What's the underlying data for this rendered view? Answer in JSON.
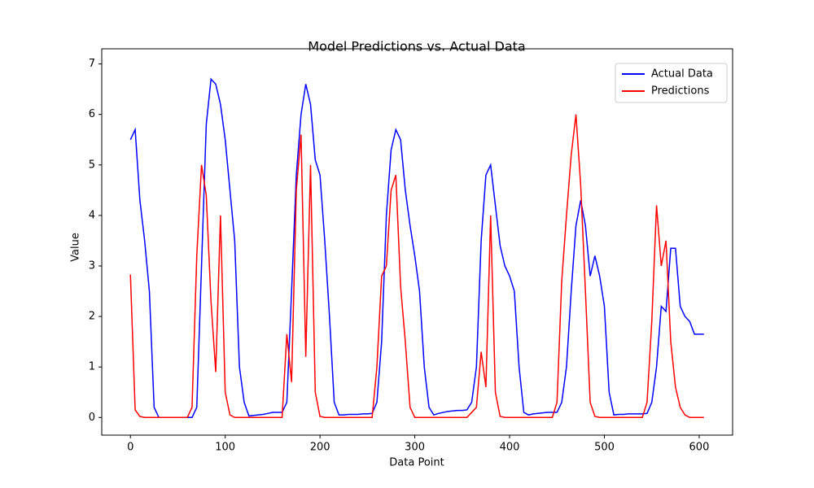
{
  "chart_data": {
    "type": "line",
    "title": "Model Predictions vs. Actual Data",
    "x_label": "Data Point",
    "y_label": "Value",
    "x": [
      0,
      5,
      10,
      15,
      20,
      25,
      30,
      35,
      40,
      45,
      50,
      55,
      60,
      65,
      70,
      75,
      80,
      85,
      90,
      95,
      100,
      105,
      110,
      115,
      120,
      125,
      130,
      135,
      140,
      145,
      150,
      155,
      160,
      165,
      170,
      175,
      180,
      185,
      190,
      195,
      200,
      205,
      210,
      215,
      220,
      225,
      230,
      235,
      240,
      245,
      250,
      255,
      260,
      265,
      270,
      275,
      280,
      285,
      290,
      295,
      300,
      305,
      310,
      315,
      320,
      325,
      330,
      335,
      340,
      345,
      350,
      355,
      360,
      365,
      370,
      375,
      380,
      385,
      390,
      395,
      400,
      405,
      410,
      415,
      420,
      425,
      430,
      435,
      440,
      445,
      450,
      455,
      460,
      465,
      470,
      475,
      480,
      485,
      490,
      495,
      500,
      505,
      510,
      515,
      520,
      525,
      530,
      535,
      540,
      545,
      550,
      555,
      560,
      565,
      570,
      575,
      580,
      585,
      590,
      595,
      600,
      605
    ],
    "series": [
      {
        "name": "Actual Data",
        "color": "#0000ff",
        "values": [
          5.5,
          5.7,
          4.3,
          3.5,
          2.5,
          0.2,
          0,
          0,
          0,
          0,
          0,
          0,
          0,
          0,
          0.2,
          3.0,
          5.8,
          6.7,
          6.6,
          6.2,
          5.5,
          4.5,
          3.5,
          1.0,
          0.3,
          0.03,
          0.04,
          0.05,
          0.06,
          0.08,
          0.1,
          0.1,
          0.1,
          0.3,
          2.5,
          4.8,
          6.0,
          6.6,
          6.2,
          5.1,
          4.8,
          3.5,
          2.0,
          0.3,
          0.05,
          0.05,
          0.06,
          0.06,
          0.06,
          0.07,
          0.07,
          0.08,
          0.3,
          1.5,
          4.0,
          5.3,
          5.7,
          5.5,
          4.5,
          3.8,
          3.2,
          2.5,
          1.0,
          0.2,
          0.05,
          0.08,
          0.1,
          0.12,
          0.13,
          0.14,
          0.14,
          0.15,
          0.3,
          1.0,
          3.5,
          4.8,
          5.0,
          4.2,
          3.4,
          3.0,
          2.8,
          2.5,
          1.0,
          0.1,
          0.05,
          0.07,
          0.08,
          0.09,
          0.1,
          0.1,
          0.1,
          0.3,
          1.0,
          2.5,
          3.8,
          4.3,
          3.8,
          2.8,
          3.2,
          2.8,
          2.2,
          0.5,
          0.05,
          0.06,
          0.06,
          0.07,
          0.07,
          0.07,
          0.07,
          0.08,
          0.3,
          1.0,
          2.2,
          2.1,
          3.35,
          3.35,
          2.2,
          2.0,
          1.9,
          1.65,
          1.65,
          1.65
        ]
      },
      {
        "name": "Predictions",
        "color": "#ff0000",
        "values": [
          2.83,
          0.15,
          0.02,
          0,
          0,
          0,
          0,
          0,
          0,
          0,
          0,
          0,
          0,
          0.2,
          3.2,
          5.0,
          4.4,
          2.3,
          0.9,
          4.0,
          0.5,
          0.05,
          0,
          0,
          0,
          0,
          0,
          0,
          0,
          0,
          0,
          0,
          0,
          1.65,
          0.7,
          4.5,
          5.6,
          1.2,
          5.0,
          0.5,
          0.02,
          0,
          0,
          0,
          0,
          0,
          0,
          0,
          0,
          0,
          0,
          0,
          1.0,
          2.8,
          3.0,
          4.5,
          4.8,
          2.6,
          1.5,
          0.2,
          0,
          0,
          0,
          0,
          0,
          0,
          0,
          0,
          0,
          0,
          0,
          0,
          0.1,
          0.2,
          1.3,
          0.6,
          4.0,
          0.5,
          0.02,
          0,
          0,
          0,
          0,
          0,
          0,
          0,
          0,
          0,
          0,
          0,
          0.3,
          2.7,
          4.0,
          5.2,
          6.0,
          4.6,
          2.5,
          0.3,
          0.02,
          0,
          0,
          0,
          0,
          0,
          0,
          0,
          0,
          0,
          0,
          0.3,
          1.9,
          4.2,
          3.0,
          3.5,
          1.5,
          0.6,
          0.2,
          0.05,
          0,
          0,
          0,
          0
        ]
      }
    ],
    "xlim": [
      -30.25,
      635.25
    ],
    "xticks": [
      0,
      100,
      200,
      300,
      400,
      500,
      600
    ],
    "ylim": [
      -0.35,
      7.3
    ],
    "yticks": [
      0,
      1,
      2,
      3,
      4,
      5,
      6,
      7
    ],
    "grid": false,
    "legend": "upper right"
  }
}
